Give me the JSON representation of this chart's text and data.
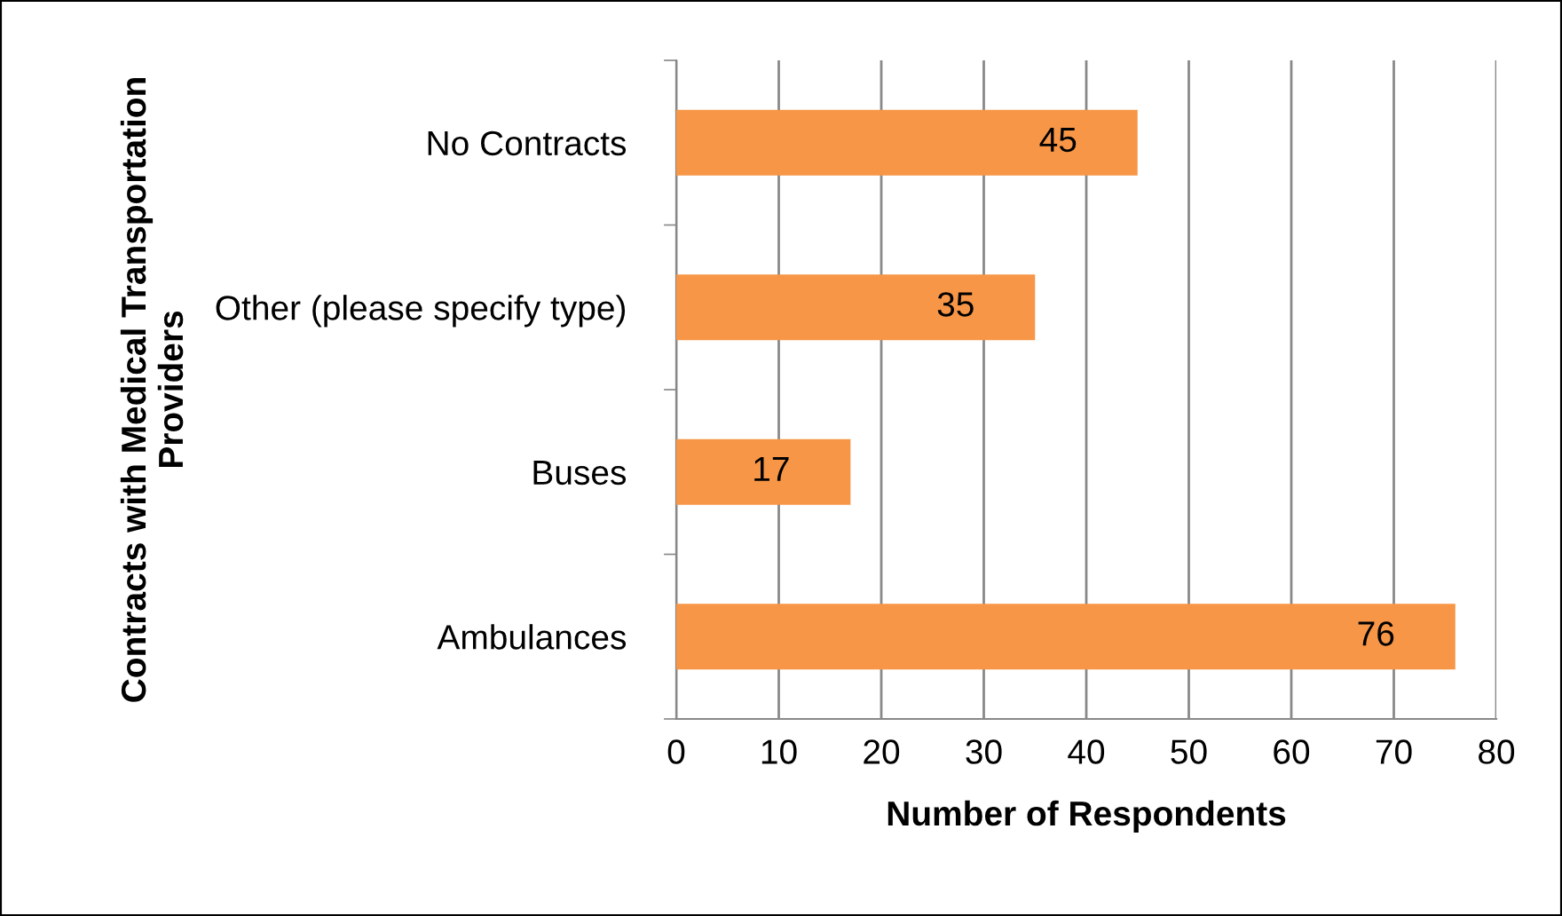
{
  "chart_data": {
    "type": "bar",
    "orientation": "horizontal",
    "categories": [
      "No Contracts",
      "Other (please specify type)",
      "Buses",
      "Ambulances"
    ],
    "values": [
      45,
      35,
      17,
      76
    ],
    "color": "#f79646",
    "data_labels": true,
    "xlabel": "Number of Respondents",
    "ylabel": "Contracts with Medical Transportation\nProviders",
    "xlim": [
      0,
      80
    ],
    "xticks": [
      0,
      10,
      20,
      30,
      40,
      50,
      60,
      70,
      80
    ],
    "grid": "x",
    "legend": false
  }
}
